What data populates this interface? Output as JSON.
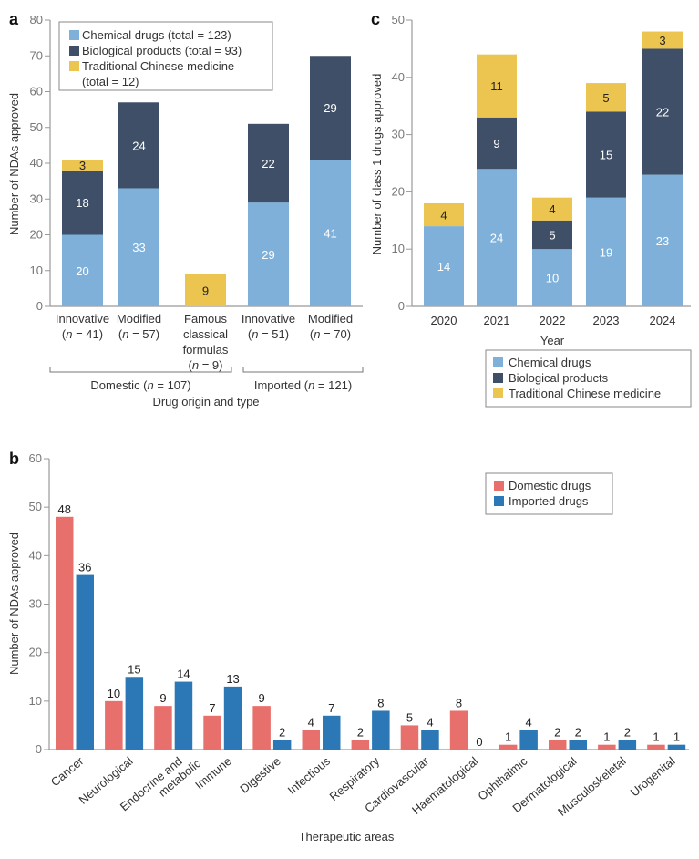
{
  "colors": {
    "chemical": "#7eb0d9",
    "biological": "#3e4f67",
    "tcm": "#ebc550",
    "domestic": "#e8706c",
    "imported": "#2c78b7"
  },
  "chart_data": [
    {
      "panel": "a",
      "type": "bar",
      "stacked": true,
      "ylabel": "Number of NDAs approved",
      "xlabel": "Drug origin and type",
      "ylim": [
        0,
        80
      ],
      "yticks": [
        0,
        10,
        20,
        30,
        40,
        50,
        60,
        70,
        80
      ],
      "categories": [
        {
          "lines": [
            "Innovative",
            "(n = 41)"
          ]
        },
        {
          "lines": [
            "Modified",
            "(n = 57)"
          ]
        },
        {
          "lines": [
            "Famous",
            "classical",
            "formulas",
            "(n = 9)"
          ]
        },
        {
          "lines": [
            "Innovative",
            "(n = 51)"
          ]
        },
        {
          "lines": [
            "Modified",
            "(n = 70)"
          ]
        }
      ],
      "groups": [
        {
          "label": "Domestic (n = 107)",
          "categories": [
            0,
            1,
            2
          ]
        },
        {
          "label": "Imported (n = 121)",
          "categories": [
            3,
            4
          ]
        }
      ],
      "series": [
        {
          "name": "Chemical drugs",
          "legend": "Chemical drugs (total = 123)",
          "color_key": "chemical",
          "values": [
            20,
            33,
            0,
            29,
            41
          ]
        },
        {
          "name": "Biological products",
          "legend": "Biological products (total = 93)",
          "color_key": "biological",
          "values": [
            18,
            24,
            0,
            22,
            29
          ]
        },
        {
          "name": "Traditional Chinese medicine",
          "legend": "Traditional Chinese medicine (total = 12)",
          "color_key": "tcm",
          "values": [
            3,
            0,
            9,
            0,
            0
          ]
        }
      ],
      "legend_position": "top-left"
    },
    {
      "panel": "c",
      "type": "bar",
      "stacked": true,
      "ylabel": "Number of class 1 drugs approved",
      "xlabel": "Year",
      "ylim": [
        0,
        50
      ],
      "yticks": [
        0,
        10,
        20,
        30,
        40,
        50
      ],
      "categories": [
        "2020",
        "2021",
        "2022",
        "2023",
        "2024"
      ],
      "series": [
        {
          "name": "Chemical drugs",
          "legend": "Chemical drugs",
          "color_key": "chemical",
          "values": [
            14,
            24,
            10,
            19,
            23
          ]
        },
        {
          "name": "Biological products",
          "legend": "Biological products",
          "color_key": "biological",
          "values": [
            0,
            9,
            5,
            15,
            22
          ]
        },
        {
          "name": "Traditional Chinese medicine",
          "legend": "Traditional Chinese medicine",
          "color_key": "tcm",
          "values": [
            4,
            11,
            4,
            5,
            3
          ]
        }
      ],
      "legend_position": "bottom-right (below chart)"
    },
    {
      "panel": "b",
      "type": "bar",
      "stacked": false,
      "ylabel": "Number of NDAs approved",
      "xlabel": "Therapeutic areas",
      "ylim": [
        0,
        60
      ],
      "yticks": [
        0,
        10,
        20,
        30,
        40,
        50,
        60
      ],
      "categories": [
        "Cancer",
        "Neurological",
        "Endocrine and metabolic",
        "Immune",
        "Digestive",
        "Infectious",
        "Respiratory",
        "Cardiovascular",
        "Haematological",
        "Ophthalmic",
        "Dermatological",
        "Musculoskeletal",
        "Urogenital"
      ],
      "category_lines": [
        [
          "Cancer"
        ],
        [
          "Neurological"
        ],
        [
          "Endocrine and",
          "metabolic"
        ],
        [
          "Immune"
        ],
        [
          "Digestive"
        ],
        [
          "Infectious"
        ],
        [
          "Respiratory"
        ],
        [
          "Cardiovascular"
        ],
        [
          "Haematological"
        ],
        [
          "Ophthalmic"
        ],
        [
          "Dermatological"
        ],
        [
          "Musculoskeletal"
        ],
        [
          "Urogenital"
        ]
      ],
      "series": [
        {
          "name": "Domestic drugs",
          "color_key": "domestic",
          "values": [
            48,
            10,
            9,
            7,
            9,
            4,
            2,
            5,
            8,
            1,
            2,
            1,
            1
          ]
        },
        {
          "name": "Imported drugs",
          "color_key": "imported",
          "values": [
            36,
            15,
            14,
            13,
            2,
            7,
            8,
            4,
            0,
            4,
            2,
            2,
            1
          ]
        }
      ],
      "legend_position": "top-right"
    }
  ]
}
